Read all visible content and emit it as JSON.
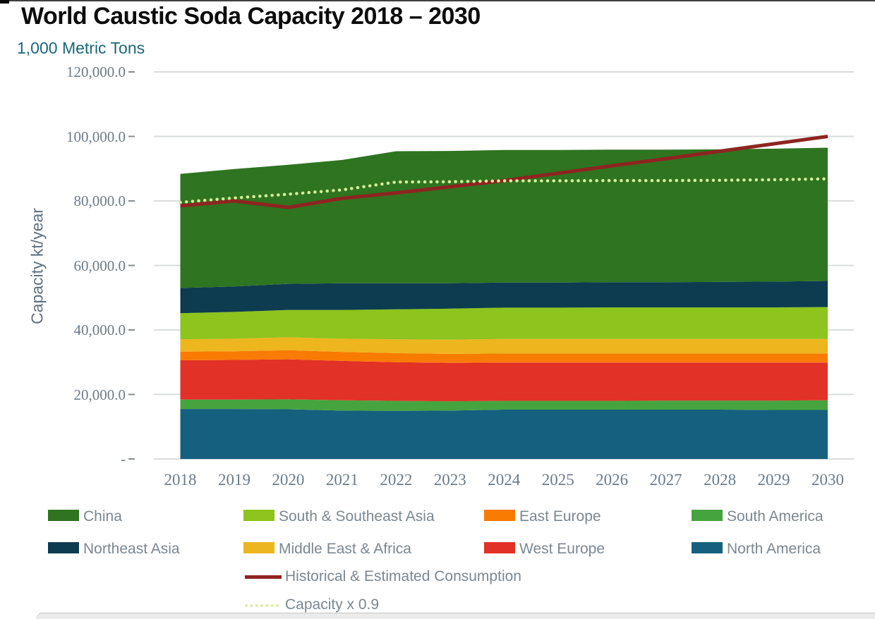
{
  "header": {
    "title": "World Caustic Soda Capacity 2018 – 2030",
    "units_label": "1,000 Metric Tons"
  },
  "chart_data": {
    "type": "area",
    "stacked": true,
    "title": "World Caustic Soda Capacity 2018 – 2030",
    "subtitle": "1,000 Metric Tons",
    "ylabel": "Capacity kt/year",
    "xlabel": "",
    "grid": "horizontal",
    "ylim": [
      0,
      120000
    ],
    "x": [
      2018,
      2019,
      2020,
      2021,
      2022,
      2023,
      2024,
      2025,
      2026,
      2027,
      2028,
      2029,
      2030
    ],
    "ytick_values": [
      0,
      20000,
      40000,
      60000,
      80000,
      100000,
      120000
    ],
    "ytick_labels": [
      "-",
      "20,000.0",
      "40,000.0",
      "60,000.0",
      "80,000.0",
      "100,000.0",
      "120,000.0"
    ],
    "series": [
      {
        "name": "North America",
        "key": "north-america",
        "color": "#14607e",
        "values": [
          15500,
          15500,
          15400,
          15000,
          14900,
          15000,
          15300,
          15300,
          15300,
          15300,
          15300,
          15200,
          15200
        ]
      },
      {
        "name": "South America",
        "key": "south-america",
        "color": "#46a43e",
        "values": [
          2900,
          2900,
          3100,
          3200,
          3100,
          2900,
          2700,
          2700,
          2700,
          2800,
          2800,
          2900,
          3000
        ]
      },
      {
        "name": "West Europe",
        "key": "west-europe",
        "color": "#e23126",
        "values": [
          12200,
          12300,
          12400,
          12200,
          12000,
          11900,
          11900,
          11900,
          11900,
          11800,
          11800,
          11800,
          11700
        ]
      },
      {
        "name": "East Europe",
        "key": "east-europe",
        "color": "#f97b02",
        "values": [
          2700,
          2700,
          2800,
          2800,
          2800,
          2800,
          2800,
          2800,
          2800,
          2800,
          2800,
          2800,
          2800
        ]
      },
      {
        "name": "Middle East & Africa",
        "key": "middle-east-africa",
        "color": "#edb51e",
        "values": [
          3800,
          3900,
          4000,
          4100,
          4300,
          4400,
          4500,
          4500,
          4500,
          4500,
          4500,
          4500,
          4500
        ]
      },
      {
        "name": "South & Southeast Asia",
        "key": "south-se-asia",
        "color": "#8dc41d",
        "values": [
          8100,
          8300,
          8500,
          8900,
          9300,
          9600,
          9700,
          9700,
          9800,
          9800,
          9800,
          9800,
          9900
        ]
      },
      {
        "name": "Northeast Asia",
        "key": "northeast-asia",
        "color": "#0d3c50",
        "values": [
          7800,
          7900,
          8100,
          8300,
          8100,
          7900,
          7800,
          7800,
          7800,
          7800,
          7900,
          8000,
          8100
        ]
      },
      {
        "name": "China",
        "key": "china",
        "color": "#2f7420",
        "values": [
          35400,
          36400,
          36900,
          38200,
          40900,
          41000,
          41100,
          41100,
          41100,
          41100,
          41100,
          41200,
          41300
        ]
      }
    ],
    "lines": [
      {
        "name": "Historical & Estimated Consumption",
        "key": "consumption",
        "color": "#8e2420",
        "style": "solid",
        "width": 5,
        "values": [
          78500,
          80000,
          78000,
          80800,
          82500,
          84400,
          86300,
          88600,
          90900,
          93100,
          95400,
          97700,
          100000
        ]
      },
      {
        "name": "Capacity x 0.9",
        "key": "capacity-x-09",
        "color": "#d4ee9b",
        "style": "dotted",
        "width": 4.5,
        "values": [
          79560,
          80910,
          82080,
          83430,
          85860,
          85950,
          86220,
          86220,
          86310,
          86310,
          86400,
          86580,
          86850
        ]
      }
    ],
    "legend_position": "bottom"
  },
  "legend": {
    "items": [
      {
        "label": "China",
        "color": "#2f7420"
      },
      {
        "label": "South & Southeast Asia",
        "color": "#8dc41d"
      },
      {
        "label": "East Europe",
        "color": "#f97b02"
      },
      {
        "label": "South America",
        "color": "#46a43e"
      },
      {
        "label": "Northeast Asia",
        "color": "#0d3c50"
      },
      {
        "label": "Middle East & Africa",
        "color": "#edb51e"
      },
      {
        "label": "West Europe",
        "color": "#e23126"
      },
      {
        "label": "North America",
        "color": "#14607e"
      }
    ],
    "line_items": [
      {
        "label": "Historical & Estimated Consumption",
        "color": "#8e2420",
        "style": "solid"
      },
      {
        "label": "Capacity x 0.9",
        "color": "#d9efa3",
        "style": "dotted"
      }
    ]
  },
  "colors": {
    "gridline": "#d9dcde",
    "tick": "#848c93",
    "axis_text": "#6d7b88",
    "y_axis_title": "#5f7082",
    "subtitle": "#19687a",
    "legend_text": "#7b8791"
  }
}
